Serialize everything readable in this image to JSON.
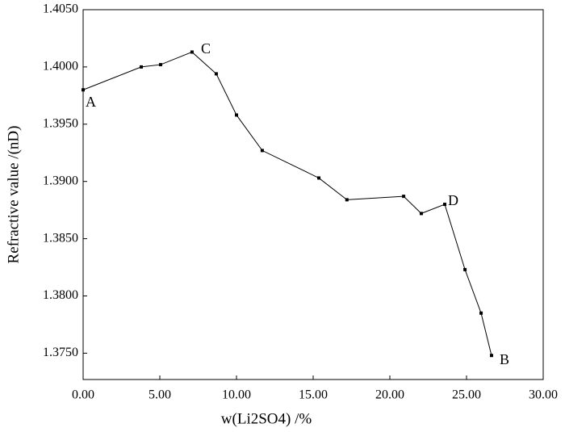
{
  "chart_data": {
    "type": "line",
    "x_label": "w(Li2SO4) /%",
    "y_label": "Refractive value /(nD)",
    "series": [
      {
        "color": "#000000",
        "x": [
          0,
          3.79,
          5.05,
          7.1,
          8.68,
          10.0,
          11.68,
          15.37,
          17.2,
          20.9,
          22.05,
          23.58,
          24.9,
          25.95,
          26.63
        ],
        "values": [
          1.398,
          1.4,
          1.4002,
          1.4013,
          1.3994,
          1.3958,
          1.3927,
          1.3903,
          1.3884,
          1.3887,
          1.3872,
          1.388,
          1.3823,
          1.3785,
          1.3748
        ]
      }
    ],
    "annotations": [
      "A",
      "C",
      "D",
      "B"
    ],
    "xlim": [
      0,
      30
    ],
    "xticks": [
      {
        "value": 0,
        "label": "0.00"
      },
      {
        "value": 5,
        "label": "5.00"
      },
      {
        "value": 10,
        "label": "10.00"
      },
      {
        "value": 15,
        "label": "15.00"
      },
      {
        "value": 20,
        "label": "20.00"
      },
      {
        "value": 25,
        "label": "25.00"
      },
      {
        "value": 30,
        "label": "30.00"
      }
    ],
    "ylim": [
      1.3727,
      1.405
    ],
    "yticks": [
      {
        "value": 1.375,
        "label": "1.3750"
      },
      {
        "value": 1.38,
        "label": "1.3800"
      },
      {
        "value": 1.385,
        "label": "1.3850"
      },
      {
        "value": 1.39,
        "label": "1.3900"
      },
      {
        "value": 1.395,
        "label": "1.3950"
      },
      {
        "value": 1.4,
        "label": "1.4000"
      },
      {
        "value": 1.405,
        "label": "1.4050"
      }
    ]
  }
}
